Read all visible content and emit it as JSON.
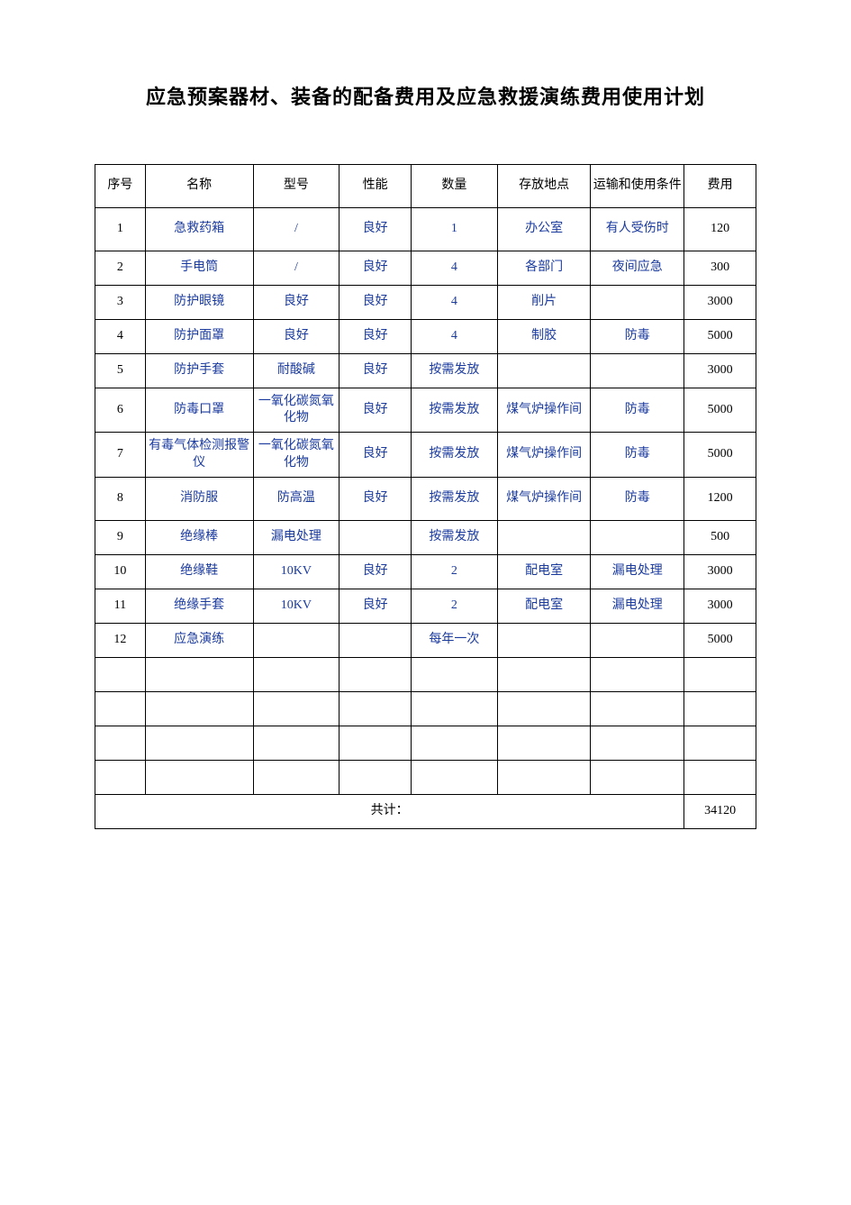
{
  "title": "应急预案器材、装备的配备费用及应急救援演练费用使用计划",
  "table": {
    "columns": [
      "序号",
      "名称",
      "型号",
      "性能",
      "数量",
      "存放地点",
      "运输和使用条件",
      "费用"
    ],
    "column_widths_percent": [
      7,
      15,
      12,
      10,
      12,
      13,
      13,
      10
    ],
    "rows": [
      {
        "seq": "1",
        "name": "急救药箱",
        "model": "/",
        "perf": "良好",
        "qty": "1",
        "loc": "办公室",
        "cond": "有人受伤时",
        "cost": "120"
      },
      {
        "seq": "2",
        "name": "手电筒",
        "model": "/",
        "perf": "良好",
        "qty": "4",
        "loc": "各部门",
        "cond": "夜间应急",
        "cost": "300"
      },
      {
        "seq": "3",
        "name": "防护眼镜",
        "model": "良好",
        "perf": "良好",
        "qty": "4",
        "loc": "削片",
        "cond": "",
        "cost": "3000"
      },
      {
        "seq": "4",
        "name": "防护面罩",
        "model": "良好",
        "perf": "良好",
        "qty": "4",
        "loc": "制胶",
        "cond": "防毒",
        "cost": "5000"
      },
      {
        "seq": "5",
        "name": "防护手套",
        "model": "耐酸碱",
        "perf": "良好",
        "qty": "按需发放",
        "loc": "",
        "cond": "",
        "cost": "3000"
      },
      {
        "seq": "6",
        "name": "防毒口罩",
        "model": "一氧化碳氮氧化物",
        "perf": "良好",
        "qty": "按需发放",
        "loc": "煤气炉操作间",
        "cond": "防毒",
        "cost": "5000"
      },
      {
        "seq": "7",
        "name": "有毒气体检测报警仪",
        "model": "一氧化碳氮氧化物",
        "perf": "良好",
        "qty": "按需发放",
        "loc": "煤气炉操作间",
        "cond": "防毒",
        "cost": "5000"
      },
      {
        "seq": "8",
        "name": "消防服",
        "model": "防高温",
        "perf": "良好",
        "qty": "按需发放",
        "loc": "煤气炉操作间",
        "cond": "防毒",
        "cost": "1200"
      },
      {
        "seq": "9",
        "name": "绝缘棒",
        "model": "漏电处理",
        "perf": "",
        "qty": "按需发放",
        "loc": "",
        "cond": "",
        "cost": "500"
      },
      {
        "seq": "10",
        "name": "绝缘鞋",
        "model": "10KV",
        "perf": "良好",
        "qty": "2",
        "loc": "配电室",
        "cond": "漏电处理",
        "cost": "3000"
      },
      {
        "seq": "11",
        "name": "绝缘手套",
        "model": "10KV",
        "perf": "良好",
        "qty": "2",
        "loc": "配电室",
        "cond": "漏电处理",
        "cost": "3000"
      },
      {
        "seq": "12",
        "name": "应急演练",
        "model": "",
        "perf": "",
        "qty": "每年一次",
        "loc": "",
        "cond": "",
        "cost": "5000"
      }
    ],
    "empty_rows": 4,
    "total_label": "共计：",
    "total_value": "34120",
    "header_text_color": "#000000",
    "data_text_color": "#1a3a9e",
    "seq_text_color": "#000000",
    "border_color": "#000000",
    "background_color": "#ffffff",
    "font_size_title": 22,
    "font_size_cell": 14
  }
}
